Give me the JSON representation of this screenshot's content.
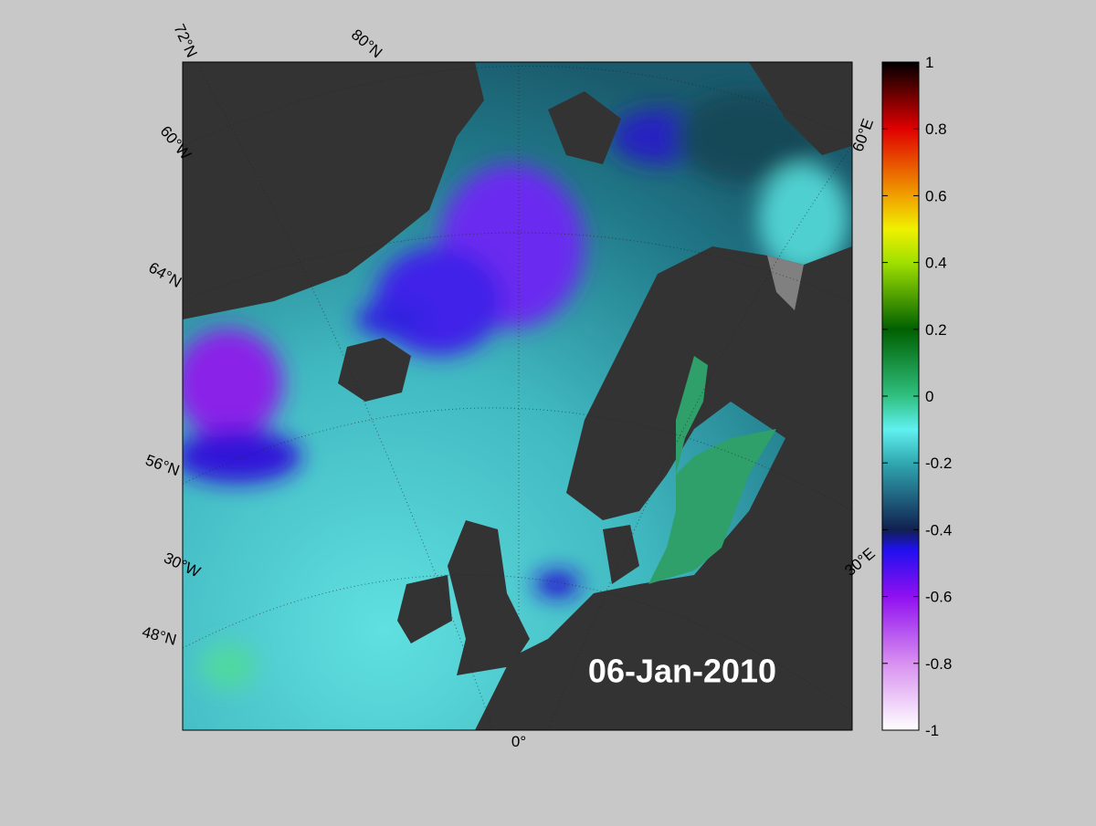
{
  "map": {
    "date_label": "06-Jan-2010",
    "graticule_labels": [
      "72°N",
      "80°N",
      "60°W",
      "64°N",
      "56°N",
      "30°W",
      "48°N",
      "0°",
      "30°E",
      "60°E"
    ]
  },
  "colorbar": {
    "lim": [
      -1,
      1
    ],
    "ticks": [
      1,
      0.8,
      0.6,
      0.4,
      0.2,
      0,
      -0.2,
      -0.4,
      -0.6,
      -0.8,
      -1
    ]
  }
}
